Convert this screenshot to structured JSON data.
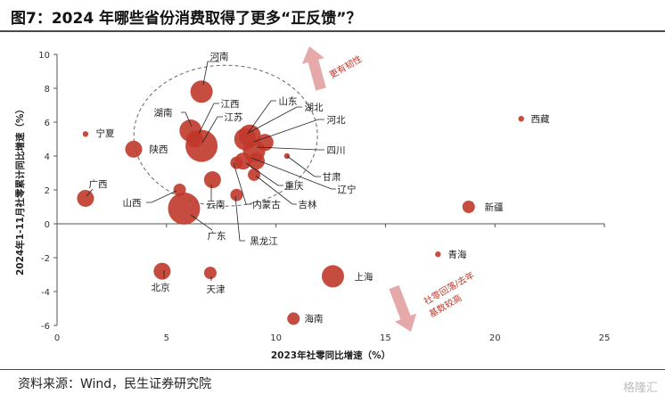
{
  "header": {
    "title": "图7：2024 年哪些省份消费取得了更多“正反馈”？"
  },
  "footer": {
    "source": "资料来源：Wind，民生证券研究院",
    "watermark": "格隆汇"
  },
  "colors": {
    "bubble": "#c0392b",
    "arrow": "#e6a9a9",
    "annotation": "#c0392b",
    "axis": "#555555"
  },
  "annotations": {
    "upper": "更有韧性",
    "lower_line1": "社零回落/去年",
    "lower_line2": "基数较高"
  },
  "chart_data": {
    "type": "scatter",
    "title": "",
    "xlabel": "2023年社零同比增速（%）",
    "ylabel": "2024年1-11月社零累计同比增速（%）",
    "xlim": [
      0,
      25
    ],
    "ylim": [
      -6,
      10
    ],
    "xticks": [
      0,
      5,
      10,
      15,
      20,
      25
    ],
    "yticks": [
      -6,
      -4,
      -2,
      0,
      2,
      4,
      6,
      8,
      10
    ],
    "grid": false,
    "points": [
      {
        "name": "河南",
        "x": 6.6,
        "y": 7.8,
        "size": "large"
      },
      {
        "name": "湖南",
        "x": 6.1,
        "y": 5.5,
        "size": "large"
      },
      {
        "name": "江西",
        "x": 6.3,
        "y": 5.0,
        "size": "medium"
      },
      {
        "name": "江苏",
        "x": 6.6,
        "y": 4.6,
        "size": "xlarge"
      },
      {
        "name": "山东",
        "x": 8.8,
        "y": 5.2,
        "size": "large"
      },
      {
        "name": "湖北",
        "x": 8.6,
        "y": 5.0,
        "size": "large"
      },
      {
        "name": "河北",
        "x": 9.5,
        "y": 4.8,
        "size": "medium"
      },
      {
        "name": "四川",
        "x": 9.0,
        "y": 4.3,
        "size": "large"
      },
      {
        "name": "甘肃",
        "x": 10.5,
        "y": 4.0,
        "size": "tiny"
      },
      {
        "name": "辽宁",
        "x": 9.1,
        "y": 3.7,
        "size": "medium"
      },
      {
        "name": "重庆",
        "x": 8.5,
        "y": 3.7,
        "size": "medium"
      },
      {
        "name": "吉林",
        "x": 9.0,
        "y": 2.9,
        "size": "small"
      },
      {
        "name": "内蒙古",
        "x": 8.2,
        "y": 3.6,
        "size": "small"
      },
      {
        "name": "云南",
        "x": 7.1,
        "y": 2.6,
        "size": "medium"
      },
      {
        "name": "黑龙江",
        "x": 8.2,
        "y": 1.7,
        "size": "small"
      },
      {
        "name": "广东",
        "x": 5.8,
        "y": 0.9,
        "size": "xlarge"
      },
      {
        "name": "山西",
        "x": 5.6,
        "y": 2.0,
        "size": "small"
      },
      {
        "name": "陕西",
        "x": 3.5,
        "y": 4.4,
        "size": "medium"
      },
      {
        "name": "宁夏",
        "x": 1.3,
        "y": 5.3,
        "size": "tiny"
      },
      {
        "name": "广西",
        "x": 1.3,
        "y": 1.5,
        "size": "medium"
      },
      {
        "name": "西藏",
        "x": 21.2,
        "y": 6.2,
        "size": "tiny"
      },
      {
        "name": "新疆",
        "x": 18.8,
        "y": 1.0,
        "size": "small"
      },
      {
        "name": "青海",
        "x": 17.4,
        "y": -1.8,
        "size": "tiny"
      },
      {
        "name": "北京",
        "x": 4.8,
        "y": -2.8,
        "size": "medium"
      },
      {
        "name": "天津",
        "x": 7.0,
        "y": -2.9,
        "size": "small"
      },
      {
        "name": "上海",
        "x": 12.6,
        "y": -3.1,
        "size": "large"
      },
      {
        "name": "海南",
        "x": 10.8,
        "y": -5.6,
        "size": "small"
      }
    ]
  }
}
